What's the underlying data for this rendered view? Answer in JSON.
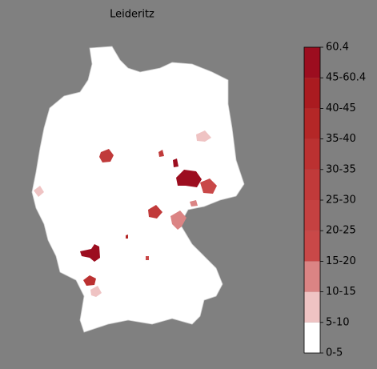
{
  "title": "Leideritz",
  "colorbar": {
    "labels": [
      "0-5",
      "5-10",
      "10-15",
      "15-20",
      "20-25",
      "25-30",
      "30-35",
      "35-40",
      "40-45",
      "45-60.4",
      "60.4"
    ],
    "colors": [
      "#ffffff",
      "#efc3c3",
      "#db8484",
      "#c94848",
      "#c54141",
      "#c13a3a",
      "#bb3131",
      "#b42727",
      "#aa1b20",
      "#9c0d1f"
    ]
  }
}
